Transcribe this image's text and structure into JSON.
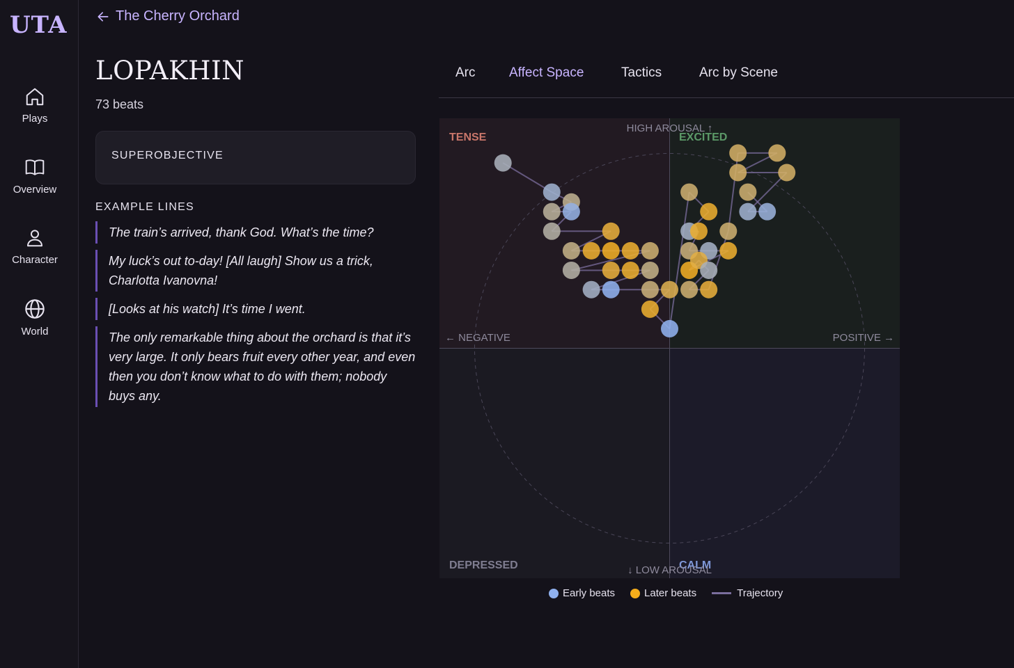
{
  "app": {
    "logo": "UTA"
  },
  "nav": [
    {
      "label": "Plays",
      "icon": "home-icon"
    },
    {
      "label": "Overview",
      "icon": "book-icon"
    },
    {
      "label": "Character",
      "icon": "person-icon"
    },
    {
      "label": "World",
      "icon": "globe-icon"
    }
  ],
  "breadcrumb": {
    "back_label": "The Cherry Orchard"
  },
  "character": {
    "name": "LOPAKHIN",
    "beats": "73 beats"
  },
  "superobjective": {
    "label": "SUPEROBJECTIVE"
  },
  "example_lines": {
    "heading": "EXAMPLE LINES",
    "items": [
      "The train’s arrived, thank God. What’s the time?",
      "My luck’s out to-day! [All laugh] Show us a trick, Charlotta Ivanovna!",
      "[Looks at his watch] It’s time I went.",
      "The only remarkable thing about the orchard is that it’s very large. It only bears fruit every other year, and even then you don’t know what to do with them; nobody buys any."
    ]
  },
  "tabs": [
    {
      "label": "Arc",
      "active": false
    },
    {
      "label": "Affect Space",
      "active": true
    },
    {
      "label": "Tactics",
      "active": false
    },
    {
      "label": "Arc by Scene",
      "active": false
    }
  ],
  "chart_data": {
    "type": "scatter",
    "x_axis": {
      "negative_label": "← NEGATIVE",
      "positive_label": "POSITIVE →",
      "range": [
        -1,
        1
      ]
    },
    "y_axis": {
      "high_label": "HIGH AROUSAL ↑",
      "low_label": "↓ LOW AROUSAL",
      "range": [
        -1,
        1
      ]
    },
    "quadrants": {
      "top_left": "TENSE",
      "top_right": "EXCITED",
      "bottom_left": "DEPRESSED",
      "bottom_right": "CALM"
    },
    "colors": {
      "early": "#8fb0ee",
      "later": "#f5ad1b",
      "trajectory": "#7b6e9e",
      "tense": "#c9766a",
      "excited": "#5c9968",
      "depressed": "#7f7d90",
      "calm": "#7f98d8"
    },
    "legend": [
      {
        "label": "Early beats",
        "kind": "early"
      },
      {
        "label": "Later beats",
        "kind": "later"
      },
      {
        "label": "Trajectory",
        "kind": "trajectory"
      }
    ],
    "points": [
      {
        "x": -0.724,
        "y": 0.806,
        "t": 0.25
      },
      {
        "x": -0.512,
        "y": 0.679,
        "t": 0.15
      },
      {
        "x": -0.427,
        "y": 0.636,
        "t": 0.45
      },
      {
        "x": -0.512,
        "y": 0.594,
        "t": 0.4
      },
      {
        "x": -0.427,
        "y": 0.594,
        "t": 0.05
      },
      {
        "x": -0.512,
        "y": 0.509,
        "t": 0.35
      },
      {
        "x": -0.255,
        "y": 0.509,
        "t": 0.85
      },
      {
        "x": -0.427,
        "y": 0.424,
        "t": 0.5
      },
      {
        "x": -0.34,
        "y": 0.424,
        "t": 0.9
      },
      {
        "x": -0.255,
        "y": 0.424,
        "t": 0.95
      },
      {
        "x": -0.17,
        "y": 0.424,
        "t": 0.9
      },
      {
        "x": -0.085,
        "y": 0.424,
        "t": 0.6
      },
      {
        "x": -0.427,
        "y": 0.339,
        "t": 0.35
      },
      {
        "x": -0.255,
        "y": 0.339,
        "t": 0.85
      },
      {
        "x": -0.17,
        "y": 0.339,
        "t": 0.9
      },
      {
        "x": -0.085,
        "y": 0.339,
        "t": 0.5
      },
      {
        "x": -0.34,
        "y": 0.255,
        "t": 0.2
      },
      {
        "x": -0.255,
        "y": 0.255,
        "t": 0.0
      },
      {
        "x": -0.085,
        "y": 0.255,
        "t": 0.55
      },
      {
        "x": 0.0,
        "y": 0.255,
        "t": 0.75
      },
      {
        "x": -0.085,
        "y": 0.17,
        "t": 0.9
      },
      {
        "x": 0.0,
        "y": 0.085,
        "t": 0.0
      },
      {
        "x": 0.085,
        "y": 0.679,
        "t": 0.6
      },
      {
        "x": 0.17,
        "y": 0.594,
        "t": 0.9
      },
      {
        "x": 0.085,
        "y": 0.509,
        "t": 0.2
      },
      {
        "x": 0.127,
        "y": 0.509,
        "t": 0.9
      },
      {
        "x": 0.085,
        "y": 0.424,
        "t": 0.55
      },
      {
        "x": 0.17,
        "y": 0.424,
        "t": 0.2
      },
      {
        "x": 0.255,
        "y": 0.424,
        "t": 0.9
      },
      {
        "x": 0.085,
        "y": 0.339,
        "t": 0.95
      },
      {
        "x": 0.127,
        "y": 0.382,
        "t": 0.8
      },
      {
        "x": 0.17,
        "y": 0.339,
        "t": 0.25
      },
      {
        "x": 0.085,
        "y": 0.255,
        "t": 0.6
      },
      {
        "x": 0.17,
        "y": 0.255,
        "t": 0.85
      },
      {
        "x": 0.255,
        "y": 0.509,
        "t": 0.6
      },
      {
        "x": 0.297,
        "y": 0.849,
        "t": 0.65
      },
      {
        "x": 0.467,
        "y": 0.849,
        "t": 0.65
      },
      {
        "x": 0.297,
        "y": 0.764,
        "t": 0.65
      },
      {
        "x": 0.509,
        "y": 0.764,
        "t": 0.65
      },
      {
        "x": 0.34,
        "y": 0.594,
        "t": 0.15
      },
      {
        "x": 0.424,
        "y": 0.594,
        "t": 0.1
      },
      {
        "x": 0.34,
        "y": 0.679,
        "t": 0.6
      }
    ]
  }
}
